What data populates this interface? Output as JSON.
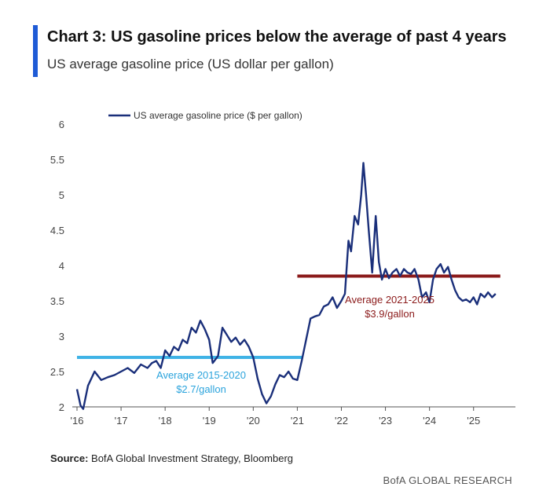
{
  "header": {
    "title": "Chart 3: US gasoline prices below the average of past 4 years",
    "subtitle": "US average gasoline price (US dollar per gallon)"
  },
  "footer": {
    "source_label": "Source:",
    "source_text": "BofA Global Investment Strategy, Bloomberg",
    "brand": "BofA GLOBAL RESEARCH"
  },
  "colors": {
    "accent": "#1f5bd6",
    "series": "#1a2f7a",
    "avg_2015_2020": "#3fb3e6",
    "avg_2021_2025": "#8b1a1a"
  },
  "chart_data": {
    "type": "line",
    "legend": "top-left",
    "grid": false,
    "ylim": [
      2,
      6
    ],
    "xlim": [
      2016,
      2025.5
    ],
    "y_ticks": [
      "2",
      "2.5",
      "3",
      "3.5",
      "4",
      "4.5",
      "5",
      "5.5",
      "6"
    ],
    "x_ticks": [
      "'16",
      "'17",
      "'18",
      "'19",
      "'20",
      "'21",
      "'22",
      "'23",
      "'24",
      "'25"
    ],
    "series": [
      {
        "name": "US average gasoline price ($ per gallon)",
        "x": [
          2016.0,
          2016.08,
          2016.14,
          2016.25,
          2016.4,
          2016.55,
          2016.7,
          2016.85,
          2017.0,
          2017.15,
          2017.3,
          2017.45,
          2017.6,
          2017.7,
          2017.8,
          2017.9,
          2018.0,
          2018.1,
          2018.2,
          2018.3,
          2018.4,
          2018.5,
          2018.6,
          2018.7,
          2018.8,
          2018.9,
          2019.0,
          2019.08,
          2019.2,
          2019.3,
          2019.4,
          2019.5,
          2019.6,
          2019.7,
          2019.8,
          2019.9,
          2020.0,
          2020.1,
          2020.2,
          2020.3,
          2020.4,
          2020.5,
          2020.6,
          2020.7,
          2020.8,
          2020.9,
          2021.0,
          2021.1,
          2021.2,
          2021.3,
          2021.4,
          2021.5,
          2021.6,
          2021.7,
          2021.8,
          2021.9,
          2022.0,
          2022.08,
          2022.16,
          2022.22,
          2022.3,
          2022.38,
          2022.45,
          2022.5,
          2022.56,
          2022.62,
          2022.7,
          2022.78,
          2022.85,
          2022.92,
          2023.0,
          2023.08,
          2023.16,
          2023.25,
          2023.33,
          2023.42,
          2023.5,
          2023.58,
          2023.66,
          2023.75,
          2023.83,
          2023.92,
          2024.0,
          2024.08,
          2024.16,
          2024.25,
          2024.33,
          2024.42,
          2024.5,
          2024.58,
          2024.66,
          2024.75,
          2024.83,
          2024.92,
          2025.0,
          2025.08,
          2025.16,
          2025.25,
          2025.33,
          2025.42,
          2025.5
        ],
        "values": [
          2.25,
          2.02,
          1.97,
          2.3,
          2.5,
          2.38,
          2.42,
          2.45,
          2.5,
          2.55,
          2.48,
          2.6,
          2.55,
          2.62,
          2.65,
          2.55,
          2.8,
          2.72,
          2.85,
          2.8,
          2.95,
          2.9,
          3.12,
          3.05,
          3.22,
          3.1,
          2.95,
          2.62,
          2.72,
          3.12,
          3.02,
          2.92,
          2.98,
          2.88,
          2.95,
          2.85,
          2.7,
          2.4,
          2.18,
          2.05,
          2.15,
          2.32,
          2.45,
          2.42,
          2.5,
          2.4,
          2.38,
          2.65,
          2.95,
          3.25,
          3.28,
          3.3,
          3.42,
          3.45,
          3.55,
          3.4,
          3.5,
          3.6,
          4.35,
          4.2,
          4.7,
          4.58,
          5.0,
          5.45,
          5.0,
          4.5,
          3.9,
          4.7,
          4.05,
          3.8,
          3.95,
          3.82,
          3.9,
          3.95,
          3.85,
          3.95,
          3.9,
          3.88,
          3.95,
          3.8,
          3.55,
          3.62,
          3.48,
          3.8,
          3.95,
          4.02,
          3.9,
          3.98,
          3.8,
          3.65,
          3.55,
          3.5,
          3.52,
          3.48,
          3.55,
          3.45,
          3.6,
          3.55,
          3.62,
          3.55,
          3.6
        ]
      }
    ],
    "reference_lines": [
      {
        "label_line1": "Average 2015-2020",
        "label_line2": "$2.7/gallon",
        "value": 2.7,
        "x_start": 2016.0,
        "x_end": 2021.0
      },
      {
        "label_line1": "Average 2021-2025",
        "label_line2": "$3.9/gallon",
        "value": 3.85,
        "x_start": 2021.0,
        "x_end": 2025.5
      }
    ]
  }
}
